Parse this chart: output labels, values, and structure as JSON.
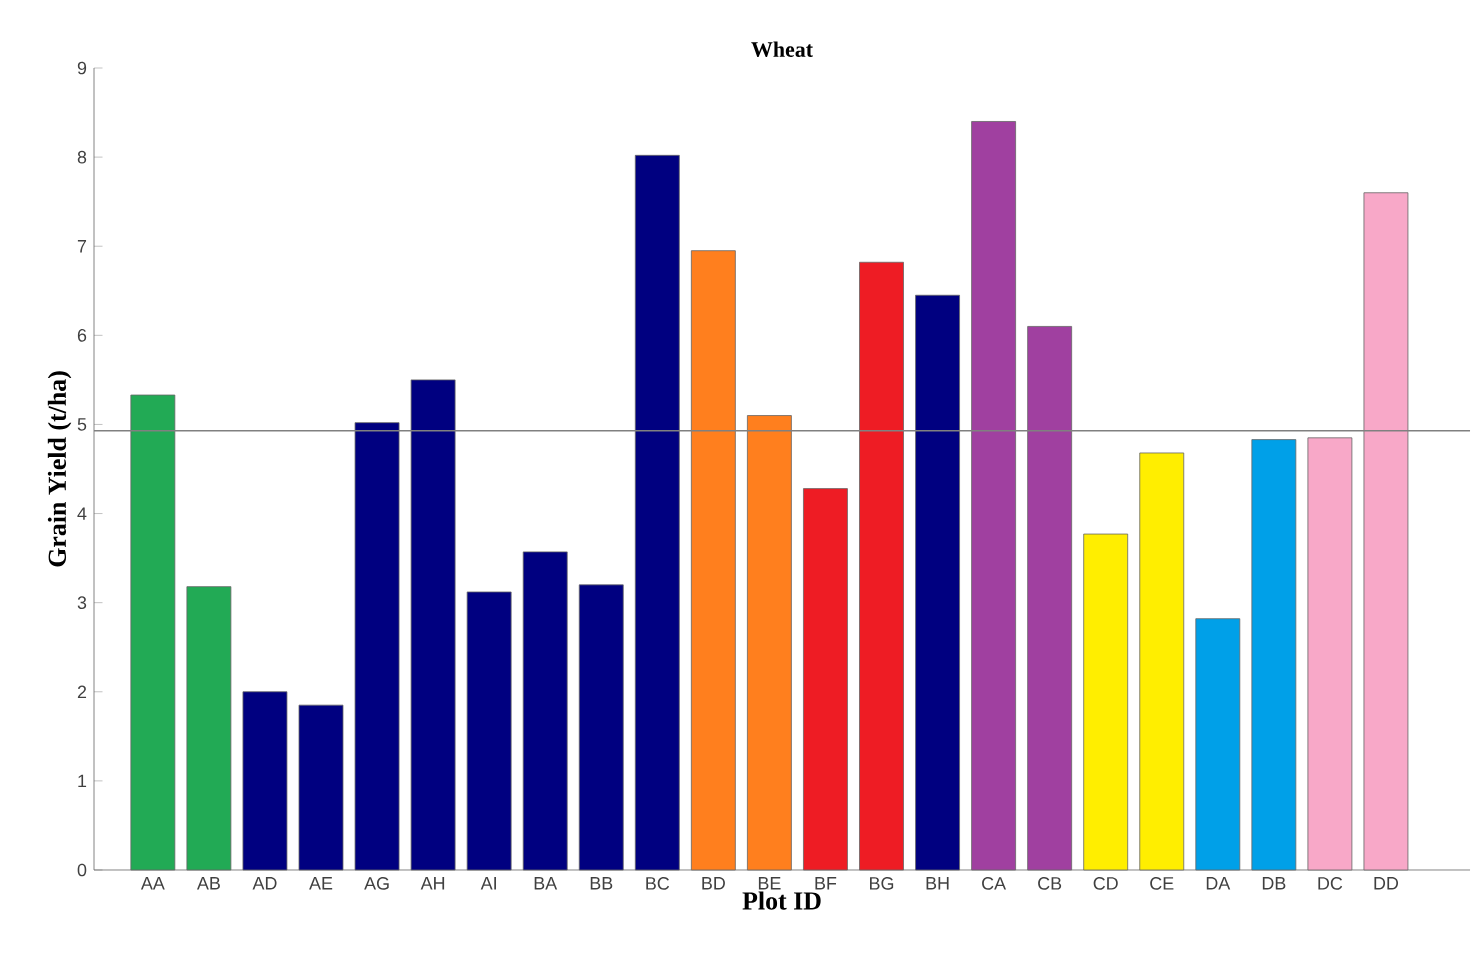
{
  "chart_data": {
    "type": "bar",
    "title": "Wheat",
    "xlabel": "Plot ID",
    "ylabel": "Grain Yield (t/ha)",
    "categories": [
      "AA",
      "AB",
      "AD",
      "AE",
      "AG",
      "AH",
      "AI",
      "BA",
      "BB",
      "BC",
      "BD",
      "BE",
      "BF",
      "BG",
      "BH",
      "CA",
      "CB",
      "CD",
      "CE",
      "DA",
      "DB",
      "DC",
      "DD"
    ],
    "values": [
      5.33,
      3.18,
      2.0,
      1.85,
      5.02,
      5.5,
      3.12,
      3.57,
      3.2,
      8.02,
      6.95,
      5.1,
      4.28,
      6.82,
      6.45,
      8.4,
      6.1,
      3.77,
      4.68,
      2.82,
      4.83,
      4.85,
      7.6
    ],
    "colors": [
      "#22aa55",
      "#22aa55",
      "#000080",
      "#000080",
      "#000080",
      "#000080",
      "#000080",
      "#000080",
      "#000080",
      "#000080",
      "#ff7f1e",
      "#ff7f1e",
      "#ee1c24",
      "#ee1c24",
      "#000080",
      "#a040a0",
      "#a040a0",
      "#ffee00",
      "#ffee00",
      "#00a0e8",
      "#00a0e8",
      "#f8a8c8",
      "#f8a8c8"
    ],
    "ylim": [
      0,
      9
    ],
    "yticks": [
      0,
      1,
      2,
      3,
      4,
      5,
      6,
      7,
      8,
      9
    ],
    "ref_lines": [
      {
        "axis": "y",
        "value": 4.93,
        "color": "#808080"
      }
    ]
  }
}
